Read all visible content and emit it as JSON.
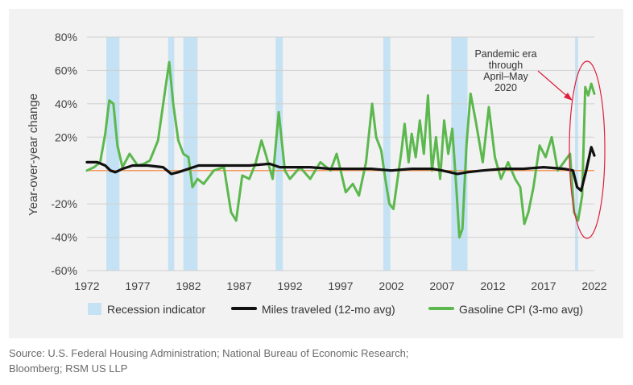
{
  "chart_data": {
    "type": "line",
    "title": "",
    "xlabel": "",
    "ylabel": "Year-over-year change",
    "xlim": [
      1972,
      2022
    ],
    "ylim": [
      -60,
      80
    ],
    "x_ticks": [
      "1972",
      "1977",
      "1982",
      "1987",
      "1992",
      "1997",
      "2002",
      "2007",
      "2012",
      "2017",
      "2022"
    ],
    "y_ticks": [
      "80%",
      "60%",
      "40%",
      "20%",
      "",
      "-20%",
      "-40%",
      "-60%"
    ],
    "recessions": [
      [
        1973.9,
        1975.2
      ],
      [
        1980.0,
        1980.6
      ],
      [
        1981.5,
        1982.9
      ],
      [
        1990.6,
        1991.3
      ],
      [
        2001.2,
        2001.9
      ],
      [
        2007.9,
        2009.5
      ],
      [
        2020.1,
        2020.4
      ]
    ],
    "legend": [
      "Recession indicator",
      "Miles traveled (12-mo avg)",
      "Gasoline CPI (3-mo avg)"
    ],
    "series": [
      {
        "name": "Miles traveled (12-mo avg)",
        "color": "#111111",
        "x": [
          1972,
          1973,
          1973.8,
          1974.3,
          1974.8,
          1975.5,
          1976.5,
          1978,
          1979.5,
          1980.3,
          1981,
          1982,
          1983,
          1984,
          1986,
          1988,
          1990,
          1991,
          1992,
          1994,
          1996,
          1998,
          2000,
          2002,
          2004,
          2006,
          2007,
          2008.5,
          2009.5,
          2011,
          2013,
          2015,
          2017,
          2019,
          2019.9,
          2020.3,
          2020.7,
          2021.2,
          2021.7,
          2022
        ],
        "values": [
          5,
          5,
          3,
          0,
          -1,
          1,
          3,
          3,
          2,
          -2,
          -1,
          1,
          3,
          3,
          3,
          3,
          4,
          2,
          2,
          2,
          1,
          1,
          1,
          0,
          1,
          1,
          0,
          -2,
          -1,
          0,
          1,
          1,
          2,
          1,
          0,
          -10,
          -12,
          0,
          14,
          9
        ]
      },
      {
        "name": "Gasoline CPI (3-mo avg)",
        "color": "#5cb84e",
        "x": [
          1972,
          1972.7,
          1973.3,
          1973.8,
          1974.2,
          1974.6,
          1975,
          1975.5,
          1976.2,
          1977,
          1977.6,
          1978.2,
          1979,
          1979.7,
          1980.1,
          1980.5,
          1981,
          1981.5,
          1982,
          1982.4,
          1982.9,
          1983.5,
          1984.5,
          1985.5,
          1986.2,
          1986.7,
          1987.3,
          1988,
          1988.6,
          1989.2,
          1989.6,
          1990.3,
          1990.9,
          1991.5,
          1992,
          1993,
          1994,
          1995,
          1996,
          1996.6,
          1997,
          1997.5,
          1998.2,
          1998.8,
          1999.5,
          2000.1,
          2000.5,
          2001,
          2001.4,
          2001.8,
          2002.2,
          2003,
          2003.3,
          2003.7,
          2004,
          2004.4,
          2004.8,
          2005.2,
          2005.6,
          2006,
          2006.4,
          2006.8,
          2007.2,
          2007.6,
          2008,
          2008.4,
          2008.7,
          2009,
          2009.4,
          2009.8,
          2010.3,
          2011,
          2011.6,
          2012.2,
          2012.8,
          2013.5,
          2014.2,
          2014.7,
          2015.1,
          2015.5,
          2016,
          2016.6,
          2017.2,
          2017.8,
          2018.4,
          2019,
          2019.6,
          2020,
          2020.4,
          2020.8,
          2021.1,
          2021.4,
          2021.7,
          2022
        ],
        "values": [
          0,
          2,
          5,
          22,
          42,
          40,
          15,
          2,
          10,
          3,
          4,
          6,
          18,
          48,
          65,
          40,
          18,
          10,
          8,
          -10,
          -5,
          -8,
          0,
          2,
          -25,
          -30,
          -3,
          -5,
          4,
          18,
          10,
          -5,
          35,
          0,
          -5,
          2,
          -5,
          5,
          0,
          10,
          0,
          -13,
          -8,
          -15,
          5,
          40,
          20,
          12,
          -5,
          -20,
          -23,
          12,
          28,
          5,
          22,
          8,
          30,
          10,
          45,
          0,
          20,
          -5,
          30,
          10,
          25,
          -10,
          -40,
          -35,
          15,
          46,
          30,
          5,
          38,
          8,
          -5,
          5,
          -5,
          -10,
          -32,
          -25,
          -10,
          15,
          8,
          20,
          0,
          5,
          10,
          -25,
          -30,
          -15,
          50,
          45,
          52,
          46
        ]
      }
    ],
    "annotation": "Pandemic era through April–May 2020"
  },
  "source_lines": [
    "Source: U.S. Federal Housing Administration; National Bureau of Economic Research;",
    "Bloomberg; RSM US LLP"
  ]
}
